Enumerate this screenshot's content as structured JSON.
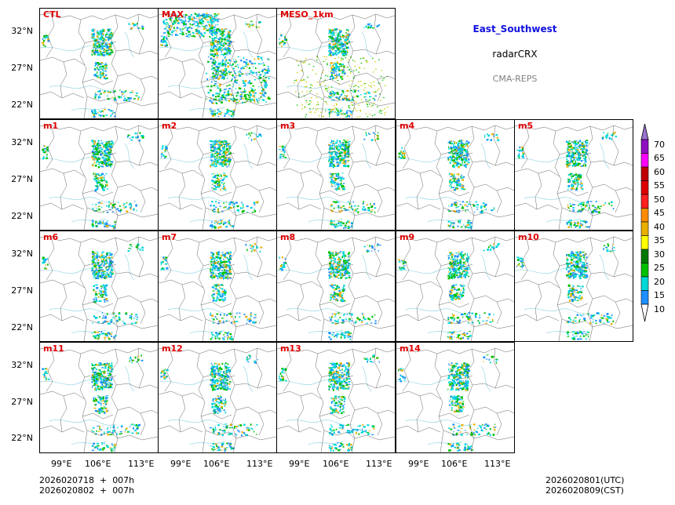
{
  "info": {
    "region": "East_Southwest",
    "variable": "radarCRX",
    "system": "CMA-REPS",
    "region_color": "#1010e0",
    "system_color": "#808080"
  },
  "panels": [
    {
      "label": "CTL"
    },
    {
      "label": "MAX"
    },
    {
      "label": "MESO_1km"
    },
    {
      "label": "m1"
    },
    {
      "label": "m2"
    },
    {
      "label": "m3"
    },
    {
      "label": "m4"
    },
    {
      "label": "m5"
    },
    {
      "label": "m6"
    },
    {
      "label": "m7"
    },
    {
      "label": "m8"
    },
    {
      "label": "m9"
    },
    {
      "label": "m10"
    },
    {
      "label": "m11"
    },
    {
      "label": "m12"
    },
    {
      "label": "m13"
    },
    {
      "label": "m14"
    }
  ],
  "axes": {
    "lat_ticks": [
      "32°N",
      "27°N",
      "22°N"
    ],
    "lon_ticks": [
      "99°E",
      "106°E",
      "113°E"
    ]
  },
  "colorbar": {
    "levels": [
      "70",
      "65",
      "60",
      "55",
      "50",
      "45",
      "40",
      "35",
      "30",
      "25",
      "20",
      "15",
      "10"
    ],
    "colors": [
      "#9a72d0",
      "#9010c0",
      "#ff00ff",
      "#c00000",
      "#e00000",
      "#ff2020",
      "#ff8c00",
      "#e8b000",
      "#ffff00",
      "#007800",
      "#00c000",
      "#00d8d8",
      "#1e90ff"
    ]
  },
  "footer": {
    "init_utc": "2026020718  +  007h",
    "init_cst": "2026020802  +  007h",
    "valid_utc": "2026020801(UTC)",
    "valid_cst": "2026020809(CST)"
  }
}
